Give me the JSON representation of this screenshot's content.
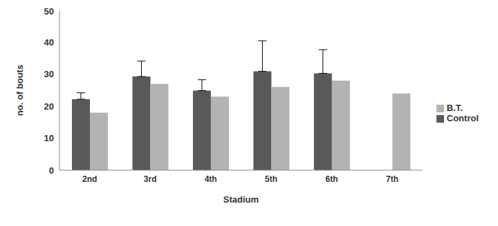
{
  "chart_data": {
    "type": "bar",
    "categories": [
      "2nd",
      "3rd",
      "4th",
      "5th",
      "6th",
      "7th"
    ],
    "series": [
      {
        "name": "Control",
        "color": "#595959",
        "values": [
          22.2,
          29.3,
          24.9,
          30.9,
          30.3,
          null
        ],
        "errors": [
          2.0,
          4.8,
          3.4,
          9.6,
          7.4,
          null
        ]
      },
      {
        "name": "B.T.",
        "color": "#b3b3b3",
        "values": [
          18,
          27,
          23,
          26,
          28,
          24
        ]
      }
    ],
    "x_label": "Stadium",
    "y_label": "no. of bouts",
    "ylim": [
      0,
      50
    ],
    "yticks": [
      0,
      10,
      20,
      30,
      40,
      50
    ],
    "legend": "right",
    "grid": false
  }
}
